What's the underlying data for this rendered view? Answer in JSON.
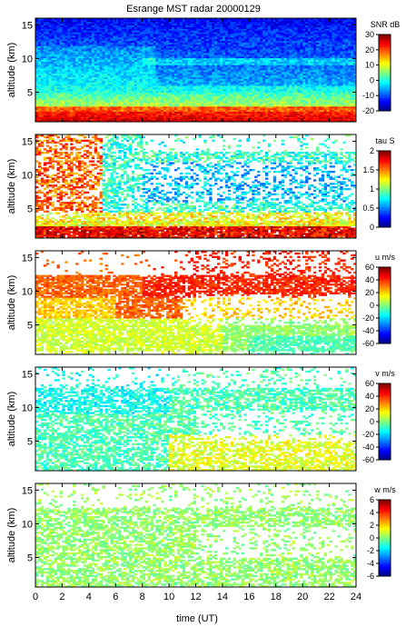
{
  "chart_data": {
    "type": "heatmap",
    "title": "Esrange MST radar 20000129",
    "xlabel": "time (UT)",
    "xlim": [
      0,
      24
    ],
    "x_ticks": [
      0,
      2,
      4,
      6,
      8,
      10,
      12,
      14,
      16,
      18,
      20,
      22,
      24
    ],
    "colormap": "jet",
    "panels": [
      {
        "id": "snr",
        "ylabel": "altitude (km)",
        "ylim": [
          0.6,
          16
        ],
        "y_ticks": [
          5,
          10,
          15
        ],
        "colorbar_label": "SNR dB",
        "clim": [
          -20,
          30
        ],
        "colorbar_ticks": [
          -20,
          -10,
          0,
          10,
          20,
          30
        ],
        "coverage": "full"
      },
      {
        "id": "tau",
        "ylabel": "altitude (km)",
        "ylim": [
          0.6,
          16
        ],
        "y_ticks": [
          5,
          10,
          15
        ],
        "colorbar_label": "tau S",
        "clim": [
          0,
          2
        ],
        "colorbar_ticks": [
          0,
          0.5,
          1,
          1.5,
          2
        ],
        "coverage": "partial"
      },
      {
        "id": "u",
        "ylabel": "altitude (km)",
        "ylim": [
          0.6,
          16
        ],
        "y_ticks": [
          5,
          10,
          15
        ],
        "colorbar_label": "u m/s",
        "clim": [
          -60,
          60
        ],
        "colorbar_ticks": [
          -60,
          -40,
          -20,
          0,
          20,
          40,
          60
        ],
        "coverage": "partial"
      },
      {
        "id": "v",
        "ylabel": "altitude (km)",
        "ylim": [
          0.6,
          16
        ],
        "y_ticks": [
          5,
          10,
          15
        ],
        "colorbar_label": "v m/s",
        "clim": [
          -60,
          60
        ],
        "colorbar_ticks": [
          -60,
          -40,
          -20,
          0,
          20,
          40,
          60
        ],
        "coverage": "partial"
      },
      {
        "id": "w",
        "ylabel": "altitude (km)",
        "ylim": [
          0.6,
          16
        ],
        "y_ticks": [
          5,
          10,
          15
        ],
        "colorbar_label": "w m/s",
        "clim": [
          -6,
          6
        ],
        "colorbar_ticks": [
          -6,
          -4,
          -2,
          0,
          2,
          4,
          6
        ],
        "coverage": "partial"
      }
    ]
  }
}
